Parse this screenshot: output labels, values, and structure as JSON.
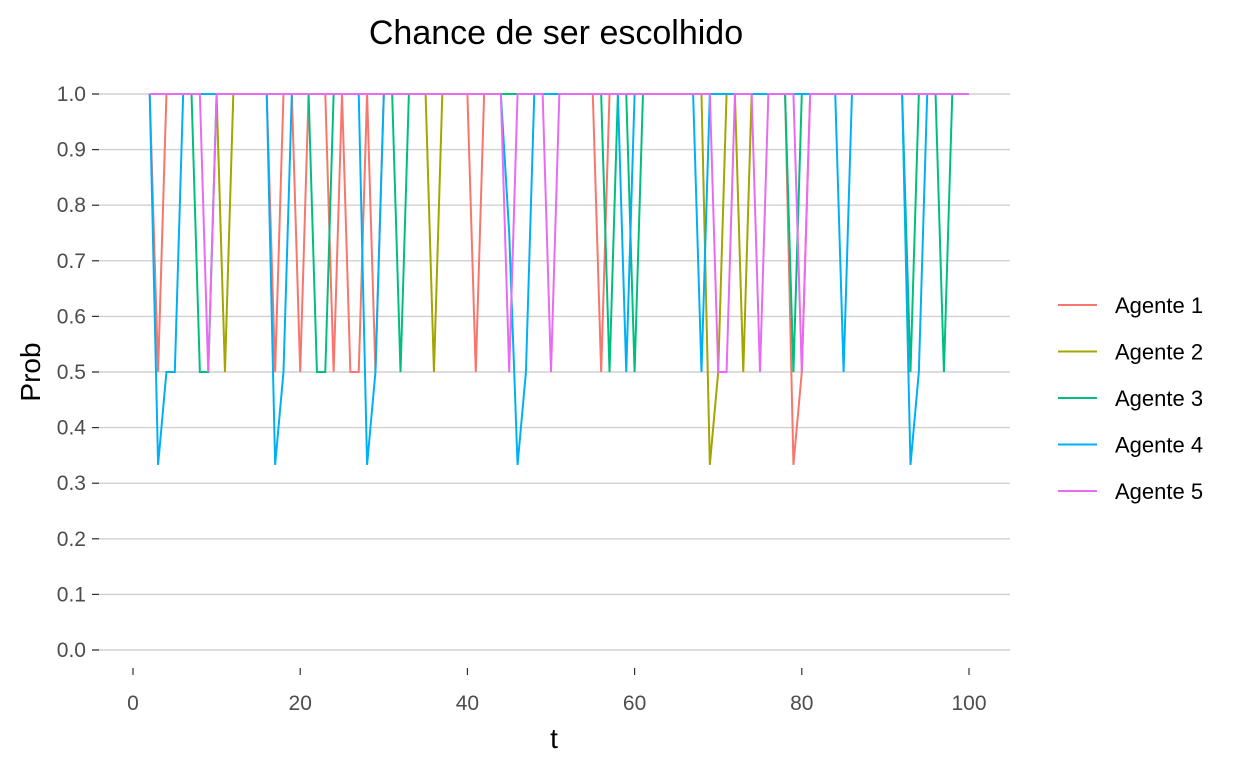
{
  "chart_data": {
    "type": "line",
    "title": "Chance de ser escolhido",
    "xlabel": "t",
    "ylabel": "Prob",
    "xlim": [
      0,
      100
    ],
    "ylim": [
      0,
      1
    ],
    "x_ticks": [
      0,
      20,
      40,
      60,
      80,
      100
    ],
    "x_tick_labels": [
      "0",
      "20",
      "40",
      "60",
      "80",
      "100"
    ],
    "y_ticks": [
      0,
      0.1,
      0.2,
      0.3,
      0.4,
      0.5,
      0.6,
      0.7,
      0.8,
      0.9,
      1.0
    ],
    "y_tick_labels": [
      "0.0",
      "0.1",
      "0.2",
      "0.3",
      "0.4",
      "0.5",
      "0.6",
      "0.7",
      "0.8",
      "0.9",
      "1.0"
    ],
    "grid": true,
    "legend_position": "right",
    "series": [
      {
        "name": "Agente 1",
        "color": "#F8766D",
        "dips": [
          [
            3,
            0.5
          ],
          [
            4,
            1
          ],
          [
            17,
            0.5
          ],
          [
            18,
            1
          ],
          [
            20,
            0.5
          ],
          [
            21,
            1
          ],
          [
            24,
            0.5
          ],
          [
            25,
            1
          ],
          [
            26,
            0.5
          ],
          [
            27,
            0.5
          ],
          [
            28,
            1
          ],
          [
            29,
            0.5
          ],
          [
            30,
            1
          ],
          [
            41,
            0.5
          ],
          [
            42,
            1
          ],
          [
            56,
            0.5
          ],
          [
            57,
            1
          ],
          [
            79,
            0.333
          ],
          [
            80,
            0.5
          ],
          [
            81,
            1
          ]
        ]
      },
      {
        "name": "Agente 2",
        "color": "#A3A500",
        "dips": [
          [
            11,
            0.5
          ],
          [
            12,
            1
          ],
          [
            36,
            0.5
          ],
          [
            37,
            1
          ],
          [
            69,
            0.333
          ],
          [
            70,
            0.5
          ],
          [
            71,
            1
          ],
          [
            73,
            0.5
          ],
          [
            74,
            1
          ]
        ]
      },
      {
        "name": "Agente 3",
        "color": "#00BF7D",
        "dips": [
          [
            8,
            0.5
          ],
          [
            9,
            0.5
          ],
          [
            10,
            1
          ],
          [
            22,
            0.5
          ],
          [
            23,
            0.5
          ],
          [
            24,
            1
          ],
          [
            32,
            0.5
          ],
          [
            33,
            1
          ],
          [
            57,
            0.5
          ],
          [
            58,
            1
          ],
          [
            60,
            0.5
          ],
          [
            61,
            1
          ],
          [
            79,
            0.5
          ],
          [
            80,
            1
          ],
          [
            93,
            0.5
          ],
          [
            94,
            1
          ],
          [
            97,
            0.5
          ],
          [
            98,
            1
          ]
        ]
      },
      {
        "name": "Agente 4",
        "color": "#00B0F6",
        "dips": [
          [
            3,
            0.333
          ],
          [
            4,
            0.5
          ],
          [
            5,
            0.5
          ],
          [
            6,
            1
          ],
          [
            17,
            0.333
          ],
          [
            18,
            0.5
          ],
          [
            19,
            1
          ],
          [
            28,
            0.333
          ],
          [
            29,
            0.5
          ],
          [
            30,
            1
          ],
          [
            45,
            0.75
          ],
          [
            46,
            0.333
          ],
          [
            47,
            0.5
          ],
          [
            48,
            1
          ],
          [
            59,
            0.5
          ],
          [
            60,
            1
          ],
          [
            68,
            0.5
          ],
          [
            69,
            1
          ],
          [
            85,
            0.5
          ],
          [
            86,
            1
          ],
          [
            93,
            0.333
          ],
          [
            94,
            0.5
          ],
          [
            95,
            1
          ]
        ]
      },
      {
        "name": "Agente 5",
        "color": "#E76BF3",
        "dips": [
          [
            9,
            0.5
          ],
          [
            10,
            1
          ],
          [
            45,
            0.5
          ],
          [
            46,
            1
          ],
          [
            50,
            0.5
          ],
          [
            51,
            1
          ],
          [
            70,
            0.5
          ],
          [
            71,
            0.5
          ],
          [
            72,
            1
          ],
          [
            75,
            0.5
          ],
          [
            76,
            1
          ],
          [
            80,
            0.5
          ],
          [
            81,
            1
          ]
        ]
      }
    ]
  }
}
